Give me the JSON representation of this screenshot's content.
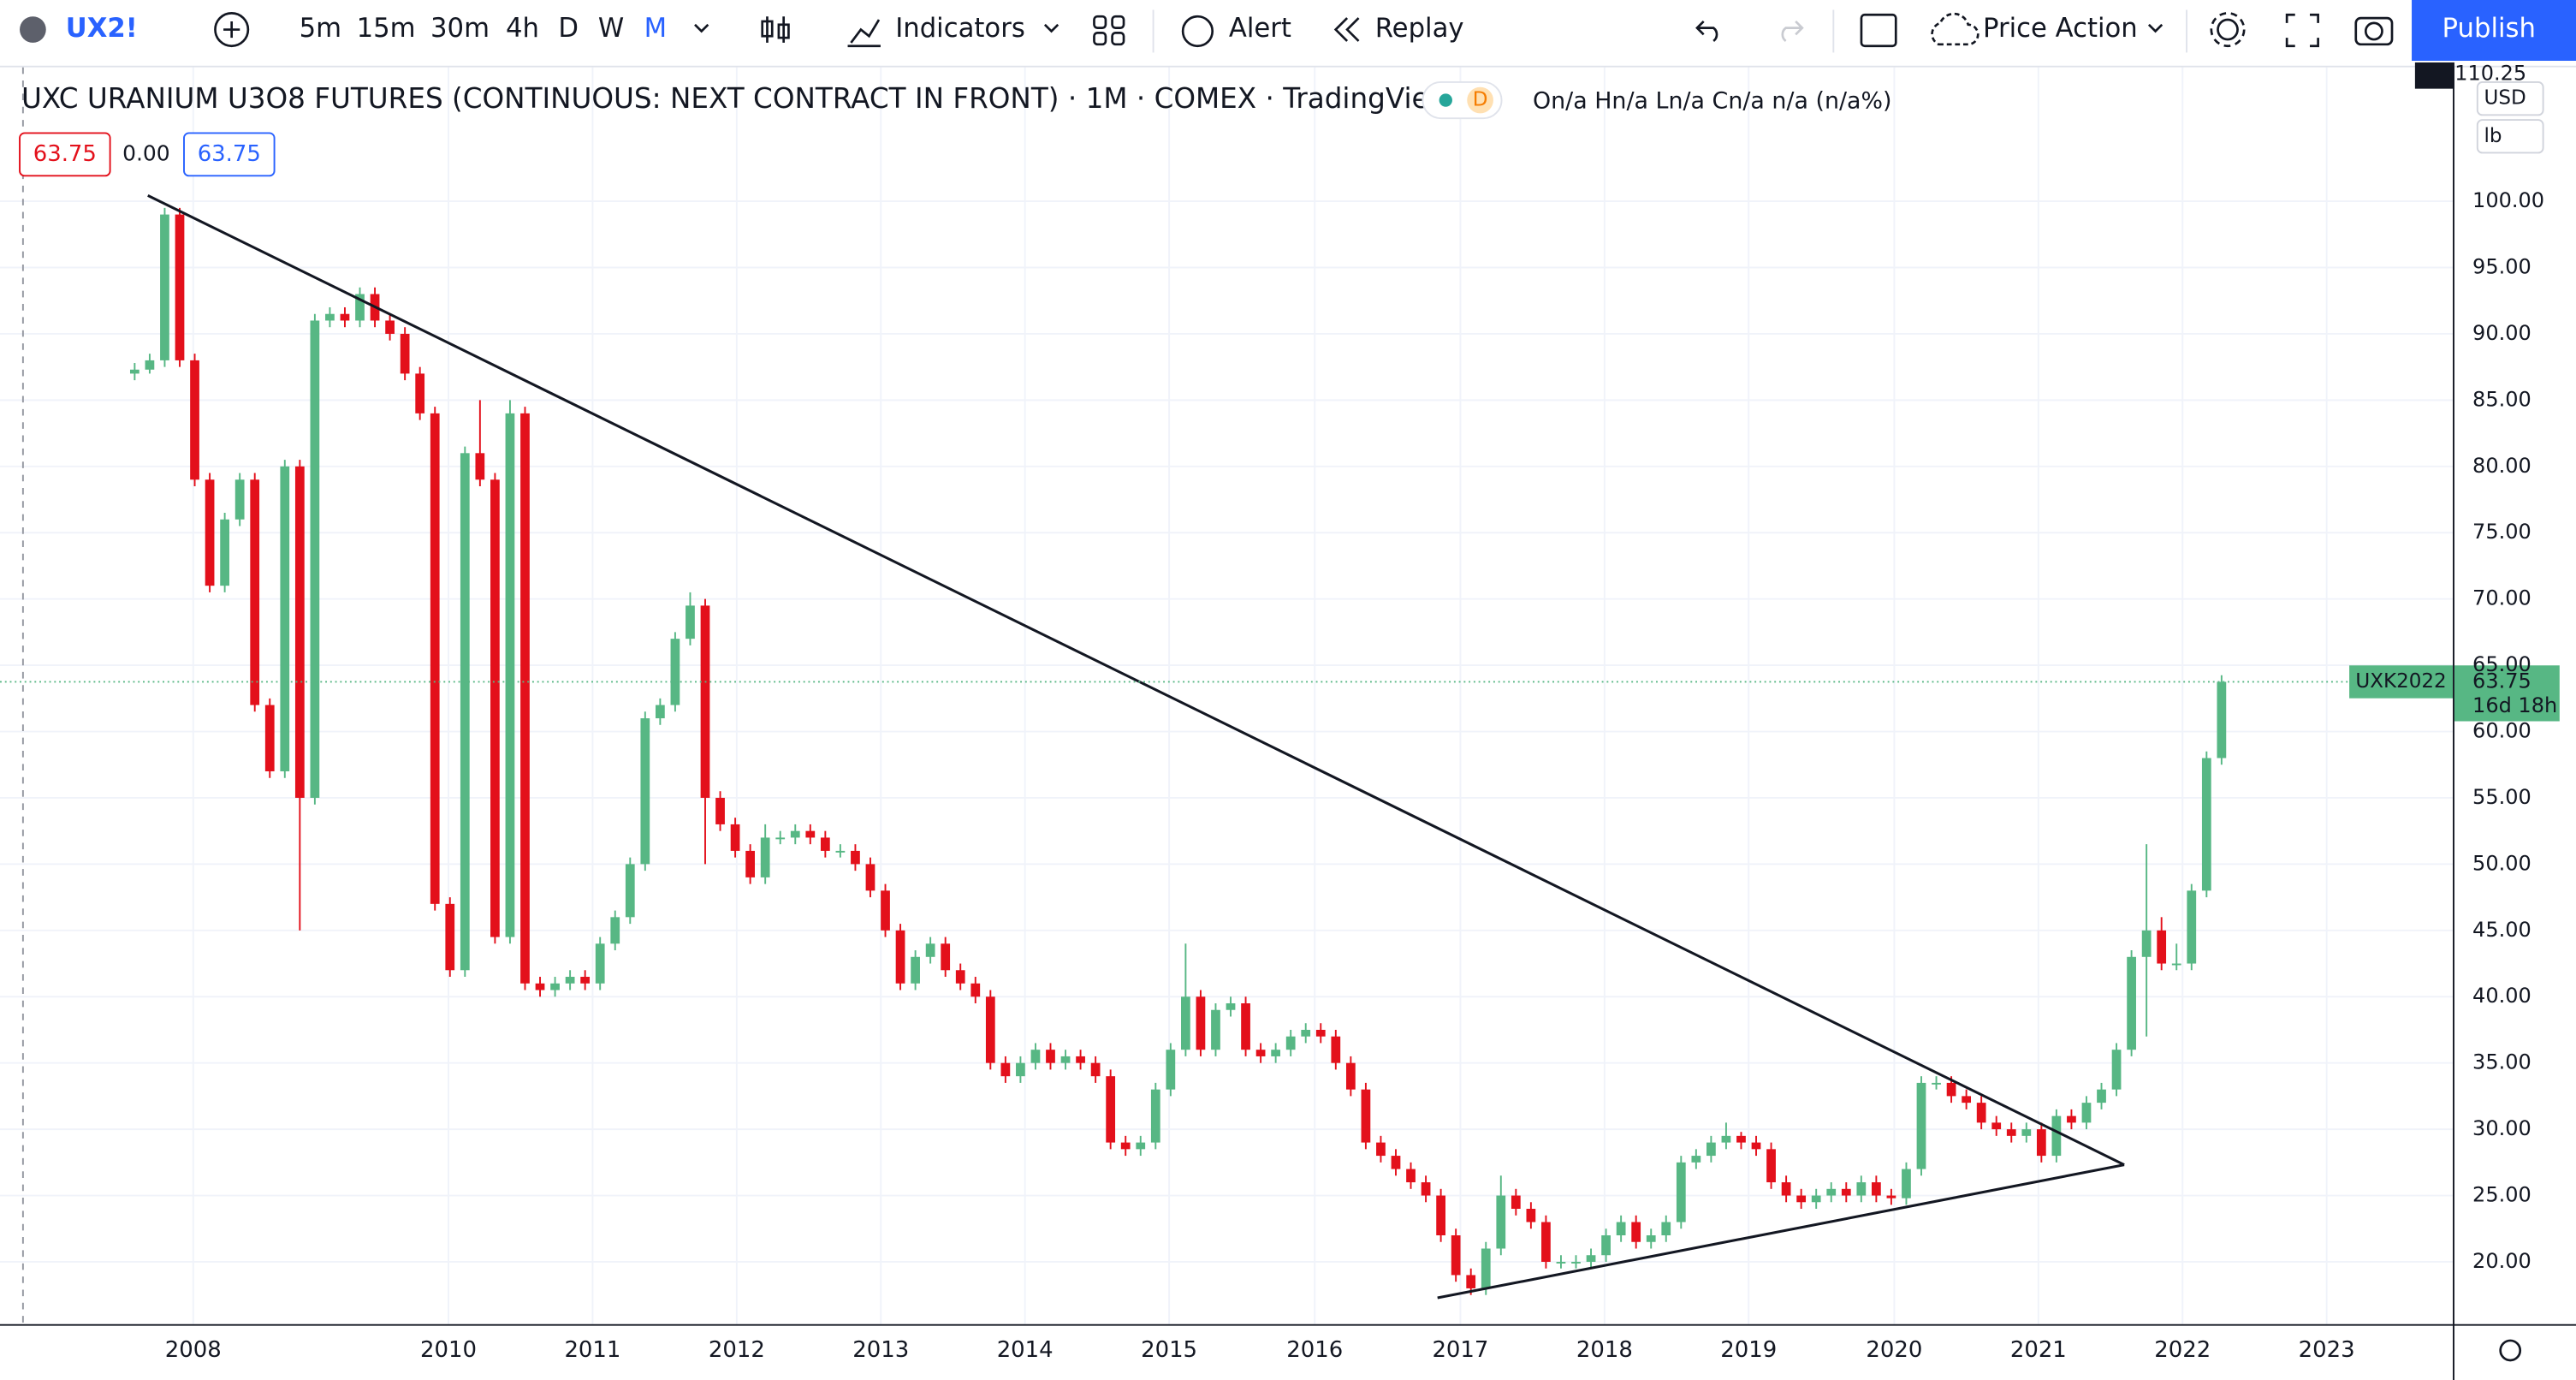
{
  "toolbar": {
    "symbol": "UX2!",
    "intervals": [
      "5m",
      "15m",
      "30m",
      "4h",
      "D",
      "W",
      "M"
    ],
    "indicators": "Indicators",
    "alert": "Alert",
    "replay": "Replay",
    "layout": "Price Action",
    "publish": "Publish"
  },
  "legend": {
    "title": "UXC URANIUM U3O8 FUTURES (CONTINUOUS: NEXT CONTRACT IN FRONT) · 1M · COMEX · TradingView",
    "badge": "D",
    "ohlc": "On/a Hn/a Ln/a Cn/a n/a (n/a%)",
    "bid": "63.75",
    "spread": "0.00",
    "ask": "63.75"
  },
  "price_scale": {
    "currency": "USD",
    "unit": "lb",
    "top_label": "110.25"
  },
  "last_price": {
    "symbol": "UXK2022",
    "price": "63.75",
    "countdown": "16d 18h"
  },
  "chart_data": {
    "type": "candlestick",
    "up_color": "#57b784",
    "down_color": "#e3101b",
    "grid": true,
    "xlim": [
      -8.97,
      154.4
    ],
    "ylim": [
      15.3,
      110.1
    ],
    "xticks": [
      {
        "value": 3.9,
        "label": "2008"
      },
      {
        "value": 20.9,
        "label": "2010"
      },
      {
        "value": 30.5,
        "label": "2011"
      },
      {
        "value": 40.1,
        "label": "2012"
      },
      {
        "value": 49.7,
        "label": "2013"
      },
      {
        "value": 59.3,
        "label": "2014"
      },
      {
        "value": 68.9,
        "label": "2015"
      },
      {
        "value": 78.6,
        "label": "2016"
      },
      {
        "value": 88.3,
        "label": "2017"
      },
      {
        "value": 97.9,
        "label": "2018"
      },
      {
        "value": 107.5,
        "label": "2019"
      },
      {
        "value": 117.2,
        "label": "2020"
      },
      {
        "value": 126.8,
        "label": "2021"
      },
      {
        "value": 136.4,
        "label": "2022"
      },
      {
        "value": 146,
        "label": "2023"
      }
    ],
    "yticks": [
      {
        "value": 20,
        "label": "20.00"
      },
      {
        "value": 25,
        "label": "25.00"
      },
      {
        "value": 30,
        "label": "30.00"
      },
      {
        "value": 35,
        "label": "35.00"
      },
      {
        "value": 40,
        "label": "40.00"
      },
      {
        "value": 45,
        "label": "45.00"
      },
      {
        "value": 50,
        "label": "50.00"
      },
      {
        "value": 55,
        "label": "55.00"
      },
      {
        "value": 60,
        "label": "60.00"
      },
      {
        "value": 65,
        "label": "65.00"
      },
      {
        "value": 70,
        "label": "70.00"
      },
      {
        "value": 75,
        "label": "75.00"
      },
      {
        "value": 80,
        "label": "80.00"
      },
      {
        "value": 85,
        "label": "85.00"
      },
      {
        "value": 90,
        "label": "90.00"
      },
      {
        "value": 95,
        "label": "95.00"
      },
      {
        "value": 100,
        "label": "100.00"
      }
    ],
    "open": [
      87,
      87.3,
      88,
      99,
      88,
      79,
      71,
      76,
      79,
      62,
      57,
      80,
      55,
      91,
      91.5,
      91,
      93,
      91,
      90,
      87,
      84,
      47,
      42,
      81,
      79,
      44.5,
      84,
      41,
      40.5,
      41,
      41.5,
      41,
      44,
      46,
      50,
      61,
      62,
      67,
      69.5,
      55,
      53,
      51,
      49,
      52,
      52,
      52.5,
      52,
      51,
      51,
      50,
      48,
      45,
      41,
      43,
      44,
      42,
      41,
      40,
      35,
      34,
      35,
      36,
      35,
      35.5,
      35,
      34,
      29,
      28.5,
      29,
      33,
      36,
      40,
      36,
      39,
      39.5,
      36,
      35.5,
      36,
      37,
      37.5,
      37,
      35,
      33,
      29,
      28,
      27,
      26,
      25,
      22,
      19,
      18,
      21,
      25,
      24,
      23,
      20,
      20,
      20,
      20.5,
      22,
      23,
      21.5,
      22,
      23,
      27.5,
      28,
      29,
      29.5,
      29,
      28.5,
      26,
      25,
      24.5,
      25,
      25.5,
      25,
      26,
      25,
      24.8,
      27,
      33.5,
      33.5,
      32.5,
      32,
      30.5,
      30,
      29.5,
      30,
      28,
      31,
      30.5,
      32,
      33,
      36,
      43,
      45,
      42.5,
      42.5,
      48,
      58
    ],
    "high": [
      87.8,
      88.5,
      99.5,
      99.5,
      88.5,
      79.5,
      76.5,
      79.5,
      79.5,
      62.5,
      80.5,
      80.5,
      91.5,
      92,
      92,
      93.5,
      93.5,
      91.5,
      90.5,
      87.5,
      84.5,
      47.5,
      81.5,
      85,
      79.5,
      85,
      84.5,
      41.5,
      41.5,
      42,
      42,
      44.5,
      46.5,
      50.5,
      61.5,
      62.5,
      67.5,
      70.5,
      70,
      55.5,
      53.5,
      51.5,
      53,
      52.5,
      53,
      53,
      52.5,
      51.5,
      51.5,
      50.5,
      48.5,
      45.5,
      43.5,
      44.5,
      44.5,
      42.5,
      41.5,
      40.5,
      35.5,
      35.5,
      36.5,
      36.5,
      36,
      36,
      35.5,
      34.5,
      29.5,
      29.5,
      33.5,
      36.5,
      44,
      40.5,
      39.5,
      40,
      40,
      36.5,
      36.5,
      37.5,
      38,
      38,
      37.5,
      35.5,
      33.5,
      29.5,
      28.5,
      27.5,
      26.5,
      25.5,
      22.5,
      19.5,
      21.5,
      26.5,
      25.5,
      24.5,
      23.5,
      20.5,
      20.5,
      21,
      22.5,
      23.5,
      23.5,
      22.5,
      23.5,
      28,
      28.5,
      29.5,
      30.5,
      29.8,
      29.5,
      29,
      26.5,
      25.5,
      25.5,
      26,
      26,
      26.5,
      26.5,
      25.5,
      27.5,
      34,
      34,
      34,
      33,
      32.5,
      31,
      30.5,
      30.5,
      30.5,
      31.5,
      31.5,
      32.5,
      33.5,
      36.5,
      43.5,
      51.5,
      46,
      44,
      48.5,
      58.5,
      64.25
    ],
    "low": [
      86.5,
      87,
      87.5,
      87.5,
      78.5,
      70.5,
      70.5,
      75.5,
      61.5,
      56.5,
      56.5,
      45,
      54.5,
      90.5,
      90.5,
      90.5,
      90.5,
      89.5,
      86.5,
      83.5,
      46.5,
      41.5,
      41.5,
      78.5,
      44,
      44,
      40.5,
      40,
      40,
      40.5,
      40.5,
      40.5,
      43.5,
      45.5,
      49.5,
      60.5,
      61.5,
      66.5,
      50,
      52.5,
      50.5,
      48.5,
      48.5,
      51.5,
      51.5,
      51.5,
      50.5,
      50.5,
      49.5,
      47.5,
      44.5,
      40.5,
      40.5,
      42.5,
      41.5,
      40.5,
      39.5,
      34.5,
      33.5,
      33.5,
      34.5,
      34.5,
      34.5,
      34.5,
      33.5,
      28.5,
      28,
      28,
      28.5,
      32.5,
      35.5,
      35.5,
      35.5,
      38.5,
      35.5,
      35,
      35,
      35.5,
      36.5,
      36.5,
      34.5,
      32.5,
      28.5,
      27.5,
      26.5,
      25.5,
      24.5,
      21.5,
      18.5,
      17.5,
      17.5,
      20.5,
      23.5,
      22.5,
      19.5,
      19.5,
      19.5,
      19.5,
      20,
      21.5,
      21,
      21,
      21.5,
      22.5,
      27,
      27.5,
      28.5,
      28.5,
      28,
      25.5,
      24.5,
      24,
      24,
      24.5,
      24.5,
      24.5,
      24.5,
      24.3,
      24.3,
      26.5,
      33,
      32,
      31.5,
      30,
      29.5,
      29,
      29,
      27.5,
      27.5,
      30,
      30,
      31.5,
      32.5,
      35.5,
      37,
      42,
      42,
      42,
      47.5,
      57.5
    ],
    "close": [
      87.3,
      88,
      99,
      88,
      79,
      71,
      76,
      79,
      62,
      57,
      80,
      55,
      91,
      91.5,
      91,
      93,
      91,
      90,
      87,
      84,
      47,
      42,
      81,
      79,
      44.5,
      84,
      41,
      40.5,
      41,
      41.5,
      41,
      44,
      46,
      50,
      61,
      62,
      67,
      69.5,
      55,
      53,
      51,
      49,
      52,
      52,
      52.5,
      52,
      51,
      51,
      50,
      48,
      45,
      41,
      43,
      44,
      42,
      41,
      40,
      35,
      34,
      35,
      36,
      35,
      35.5,
      35,
      34,
      29,
      28.5,
      29,
      33,
      36,
      40,
      36,
      39,
      39.5,
      36,
      35.5,
      36,
      37,
      37.5,
      37,
      35,
      33,
      29,
      28,
      27,
      26,
      25,
      22,
      19,
      18,
      21,
      25,
      24,
      23,
      20,
      20,
      20,
      20.5,
      22,
      23,
      21.5,
      22,
      23,
      27.5,
      28,
      29,
      29.5,
      29,
      28.5,
      26,
      25,
      24.5,
      25,
      25.5,
      25,
      26,
      25,
      24.8,
      27,
      33.5,
      33.5,
      32.5,
      32,
      30.5,
      30,
      29.5,
      30,
      28,
      31,
      30.5,
      32,
      33,
      36,
      43,
      45,
      42.5,
      42.5,
      48,
      58,
      63.75
    ]
  }
}
